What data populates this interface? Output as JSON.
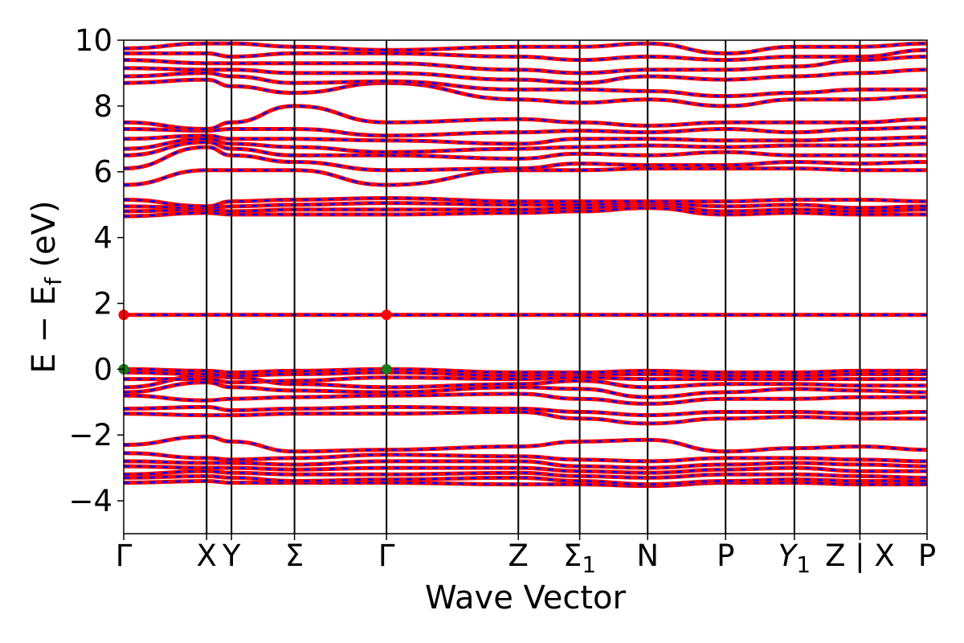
{
  "chart_data": {
    "type": "line",
    "xlabel": "Wave Vector",
    "ylabel": "E − E_f (eV)",
    "ylabel_main": "E − E",
    "ylabel_sub": "f",
    "ylabel_unit": "(eV)",
    "ylim": [
      -5,
      10
    ],
    "yticks": [
      -4,
      -2,
      0,
      2,
      4,
      6,
      8,
      10
    ],
    "ytick_labels": [
      "−4",
      "−2",
      "0",
      "2",
      "4",
      "6",
      "8",
      "10"
    ],
    "xlim": [
      0,
      9.69
    ],
    "kpoints": [
      {
        "pos": 0.0,
        "label": "Γ",
        "sub": ""
      },
      {
        "pos": 1.0,
        "label": "X",
        "sub": ""
      },
      {
        "pos": 1.3,
        "label": "Y",
        "sub": ""
      },
      {
        "pos": 2.06,
        "label": "Σ",
        "sub": ""
      },
      {
        "pos": 3.17,
        "label": "Γ",
        "sub": ""
      },
      {
        "pos": 4.76,
        "label": "Z",
        "sub": ""
      },
      {
        "pos": 5.5,
        "label": "Σ",
        "sub": "1"
      },
      {
        "pos": 6.32,
        "label": "N",
        "sub": ""
      },
      {
        "pos": 7.26,
        "label": "P",
        "sub": ""
      },
      {
        "pos": 8.09,
        "label": "Y",
        "sub": "1"
      },
      {
        "pos": 8.88,
        "label": "Z | X",
        "sub": ""
      },
      {
        "pos": 9.69,
        "label": "P",
        "sub": ""
      }
    ],
    "band_colors": {
      "spin_up": "#ff0000",
      "spin_down": "#0000ff"
    },
    "grid": false,
    "markers": [
      {
        "x": 0.0,
        "y": 1.65,
        "color": "#ff0000",
        "kind": "CBM"
      },
      {
        "x": 3.17,
        "y": 1.65,
        "color": "#ff0000",
        "kind": "CBM"
      },
      {
        "x": 0.0,
        "y": 0.0,
        "color": "#1a7a1a",
        "kind": "VBM"
      },
      {
        "x": 3.17,
        "y": 0.0,
        "color": "#1a7a1a",
        "kind": "VBM"
      }
    ],
    "bands": [
      [
        -3.45,
        -3.4,
        -3.45,
        -3.45,
        -3.45,
        -3.5,
        -3.5,
        -3.55,
        -3.45,
        -3.45,
        -3.5,
        -3.5
      ],
      [
        -3.3,
        -3.25,
        -3.3,
        -3.4,
        -3.35,
        -3.3,
        -3.4,
        -3.5,
        -3.4,
        -3.35,
        -3.4,
        -3.4
      ],
      [
        -3.2,
        -3.1,
        -3.15,
        -3.2,
        -3.2,
        -3.15,
        -3.25,
        -3.3,
        -3.2,
        -3.2,
        -3.25,
        -3.3
      ],
      [
        -2.95,
        -3.0,
        -3.0,
        -3.05,
        -3.0,
        -3.0,
        -3.1,
        -3.15,
        -3.05,
        -3.0,
        -3.1,
        -3.1
      ],
      [
        -2.8,
        -2.85,
        -2.85,
        -2.9,
        -2.8,
        -2.8,
        -2.95,
        -3.0,
        -2.9,
        -2.85,
        -2.9,
        -2.95
      ],
      [
        -2.55,
        -2.7,
        -2.75,
        -2.7,
        -2.6,
        -2.65,
        -2.75,
        -2.8,
        -2.7,
        -2.7,
        -2.75,
        -2.8
      ],
      [
        -2.3,
        -2.05,
        -2.2,
        -2.5,
        -2.45,
        -2.35,
        -2.2,
        -2.15,
        -2.5,
        -2.4,
        -2.35,
        -2.45
      ],
      [
        -1.35,
        -1.4,
        -1.4,
        -1.35,
        -1.35,
        -1.3,
        -1.5,
        -1.65,
        -1.5,
        -1.45,
        -1.5,
        -1.5
      ],
      [
        -1.2,
        -1.15,
        -1.25,
        -1.2,
        -1.15,
        -1.2,
        -1.3,
        -1.4,
        -1.3,
        -1.3,
        -1.35,
        -1.3
      ],
      [
        -0.8,
        -0.95,
        -0.9,
        -0.85,
        -0.8,
        -0.75,
        -0.9,
        -1.05,
        -0.9,
        -0.9,
        -0.85,
        -0.85
      ],
      [
        -0.7,
        -0.4,
        -0.55,
        -0.65,
        -0.7,
        -0.55,
        -0.6,
        -0.85,
        -0.7,
        -0.6,
        -0.65,
        -0.7
      ],
      [
        -0.55,
        -0.2,
        -0.25,
        -0.45,
        -0.55,
        -0.45,
        -0.35,
        -0.55,
        -0.45,
        -0.45,
        -0.5,
        -0.5
      ],
      [
        -0.3,
        -0.3,
        -0.4,
        -0.35,
        -0.25,
        -0.3,
        -0.25,
        -0.3,
        -0.3,
        -0.3,
        -0.3,
        -0.3
      ],
      [
        -0.1,
        -0.15,
        -0.2,
        -0.15,
        -0.1,
        -0.2,
        -0.15,
        -0.15,
        -0.2,
        -0.2,
        -0.15,
        -0.15
      ],
      [
        0.0,
        -0.05,
        -0.1,
        -0.05,
        0.0,
        -0.1,
        -0.1,
        -0.05,
        -0.1,
        -0.1,
        -0.05,
        -0.05
      ],
      [
        1.65,
        1.65,
        1.65,
        1.65,
        1.65,
        1.65,
        1.65,
        1.65,
        1.65,
        1.65,
        1.65,
        1.65
      ],
      [
        4.65,
        4.75,
        4.7,
        4.7,
        4.7,
        4.75,
        4.8,
        4.9,
        4.7,
        4.75,
        4.7,
        4.7
      ],
      [
        4.8,
        4.85,
        4.8,
        4.85,
        4.85,
        4.85,
        4.9,
        5.0,
        4.8,
        4.85,
        4.8,
        4.85
      ],
      [
        4.95,
        4.9,
        4.95,
        5.0,
        5.05,
        5.0,
        5.0,
        5.05,
        4.95,
        5.0,
        4.9,
        4.95
      ],
      [
        5.15,
        4.95,
        5.1,
        5.15,
        5.2,
        5.1,
        5.1,
        5.1,
        5.1,
        5.15,
        5.15,
        5.1
      ],
      [
        5.6,
        6.05,
        6.05,
        6.05,
        5.6,
        6.05,
        6.05,
        6.1,
        6.1,
        6.1,
        6.05,
        6.05
      ],
      [
        6.1,
        6.75,
        6.5,
        6.3,
        6.05,
        6.1,
        6.25,
        6.2,
        6.2,
        6.3,
        6.25,
        6.3
      ],
      [
        6.5,
        6.9,
        6.7,
        6.5,
        6.5,
        6.4,
        6.55,
        6.5,
        6.6,
        6.5,
        6.5,
        6.5
      ],
      [
        6.7,
        7.0,
        6.85,
        6.75,
        6.6,
        6.7,
        6.75,
        6.8,
        6.75,
        6.8,
        6.8,
        6.85
      ],
      [
        7.0,
        7.1,
        7.0,
        7.0,
        6.95,
        6.85,
        7.0,
        7.0,
        6.95,
        6.95,
        7.0,
        7.05
      ],
      [
        7.3,
        7.25,
        7.3,
        7.3,
        7.1,
        7.2,
        7.25,
        7.2,
        7.3,
        7.2,
        7.3,
        7.35
      ],
      [
        7.5,
        7.3,
        7.5,
        8.0,
        7.5,
        7.6,
        7.5,
        7.4,
        7.5,
        7.5,
        7.5,
        7.6
      ],
      [
        8.7,
        8.8,
        8.6,
        8.4,
        8.7,
        8.2,
        8.1,
        8.2,
        8.0,
        8.2,
        8.2,
        8.3
      ],
      [
        8.9,
        9.0,
        8.9,
        8.7,
        8.75,
        8.5,
        8.5,
        8.45,
        8.3,
        8.4,
        8.5,
        8.5
      ],
      [
        9.15,
        9.1,
        9.1,
        9.0,
        9.0,
        8.8,
        8.7,
        8.9,
        8.8,
        8.9,
        9.0,
        9.1
      ],
      [
        9.4,
        9.3,
        9.3,
        9.3,
        9.3,
        9.1,
        9.0,
        9.1,
        9.1,
        9.2,
        9.4,
        9.5
      ],
      [
        9.6,
        9.6,
        9.5,
        9.6,
        9.6,
        9.5,
        9.4,
        9.5,
        9.4,
        9.5,
        9.5,
        9.7
      ],
      [
        9.75,
        9.9,
        9.9,
        9.8,
        9.7,
        9.8,
        9.8,
        9.9,
        9.6,
        9.8,
        9.8,
        9.9
      ]
    ]
  }
}
